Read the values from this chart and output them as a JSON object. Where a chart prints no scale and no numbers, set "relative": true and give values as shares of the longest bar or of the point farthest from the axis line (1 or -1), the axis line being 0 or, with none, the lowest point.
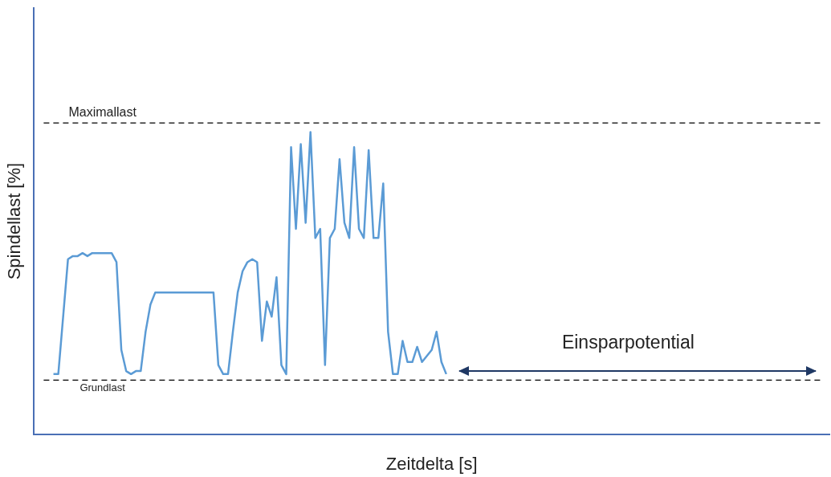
{
  "chart_data": {
    "type": "line",
    "relative": true,
    "xlabel": "Zeitdelta [s]",
    "ylabel": "Spindellast [%]",
    "grid": false,
    "legend": false,
    "marker": "none",
    "line_style": "solid",
    "categories": [
      null,
      null,
      null,
      null,
      null,
      null,
      null,
      null,
      null,
      null,
      null,
      null,
      null,
      null,
      null,
      null,
      null,
      null,
      null,
      null,
      null,
      null,
      null,
      null,
      null,
      null,
      null,
      null,
      null,
      null,
      null,
      null,
      null,
      null,
      null,
      null,
      null,
      null,
      null,
      null,
      null,
      null,
      null,
      null,
      null,
      null,
      null,
      null,
      null,
      null,
      null,
      null,
      null,
      null,
      null,
      null,
      null,
      null,
      null,
      null,
      null,
      null,
      null,
      null,
      null,
      null,
      null,
      null,
      null,
      null,
      null,
      null,
      null,
      null,
      null,
      null,
      null,
      null,
      null,
      null,
      null,
      null,
      null,
      null,
      null,
      null,
      null,
      null,
      null,
      null,
      null,
      null,
      null,
      null,
      null,
      null,
      null,
      null,
      null,
      null,
      null,
      null,
      null,
      null,
      null,
      null,
      null,
      null,
      null,
      null,
      null,
      null,
      null,
      null,
      null,
      null,
      null,
      null,
      null,
      null,
      null,
      null,
      null,
      null,
      null,
      null,
      null,
      null,
      null,
      null,
      null,
      null,
      null,
      null,
      null,
      null,
      null,
      null,
      null,
      null,
      null,
      null,
      null,
      null,
      null,
      null,
      null,
      null,
      null,
      null,
      null,
      null,
      null,
      null,
      null,
      null,
      null,
      null,
      null,
      null,
      null,
      null,
      null,
      null,
      null
    ],
    "series": [
      {
        "color": "#5b9bd5",
        "values": [
          null,
          null,
          null,
          null,
          0.2,
          0.2,
          0.39,
          0.58,
          0.59,
          0.59,
          0.6,
          0.59,
          0.6,
          0.6,
          0.6,
          0.6,
          0.6,
          0.57,
          0.28,
          0.21,
          0.2,
          0.21,
          0.21,
          0.34,
          0.43,
          0.47,
          0.47,
          0.47,
          0.47,
          0.47,
          0.47,
          0.47,
          0.47,
          0.47,
          0.47,
          0.47,
          0.47,
          0.47,
          0.23,
          0.2,
          0.2,
          0.34,
          0.47,
          0.54,
          0.57,
          0.58,
          0.57,
          0.31,
          0.44,
          0.39,
          0.52,
          0.23,
          0.2,
          0.95,
          0.68,
          0.96,
          0.7,
          1,
          0.65,
          0.68,
          0.23,
          0.65,
          0.68,
          0.91,
          0.7,
          0.65,
          0.95,
          0.68,
          0.65,
          0.94,
          0.65,
          0.65,
          0.83,
          0.34,
          0.2,
          0.2,
          0.31,
          0.24,
          0.24,
          0.29,
          0.24,
          0.26,
          0.28,
          0.34,
          0.24,
          0.2,
          null,
          null,
          null,
          null,
          null,
          null,
          null,
          null,
          null,
          null,
          null,
          null,
          null,
          null,
          null,
          null,
          null,
          null,
          null,
          null,
          null,
          null,
          null,
          null,
          null,
          null,
          null,
          null,
          null,
          null,
          null,
          null,
          null,
          null,
          null,
          null,
          null,
          null,
          null,
          null,
          null,
          null,
          null,
          null,
          null,
          null,
          null,
          null,
          null,
          null,
          null,
          null,
          null,
          null,
          null,
          null,
          null,
          null,
          null,
          null,
          null,
          null,
          null,
          null,
          null,
          null,
          null,
          null,
          null,
          null,
          null,
          null,
          null,
          null,
          null,
          null,
          null,
          null,
          null
        ]
      }
    ],
    "ref_lines": [
      {
        "axis": "y",
        "value": 1.03,
        "label": "Maximallast",
        "color": "#000000",
        "line_style": "dashed"
      },
      {
        "axis": "y",
        "value": 0.18,
        "label": "Grundlast",
        "color": "#000000",
        "line_style": "dashed"
      }
    ],
    "annotations": [
      "Einsparpotential"
    ]
  }
}
